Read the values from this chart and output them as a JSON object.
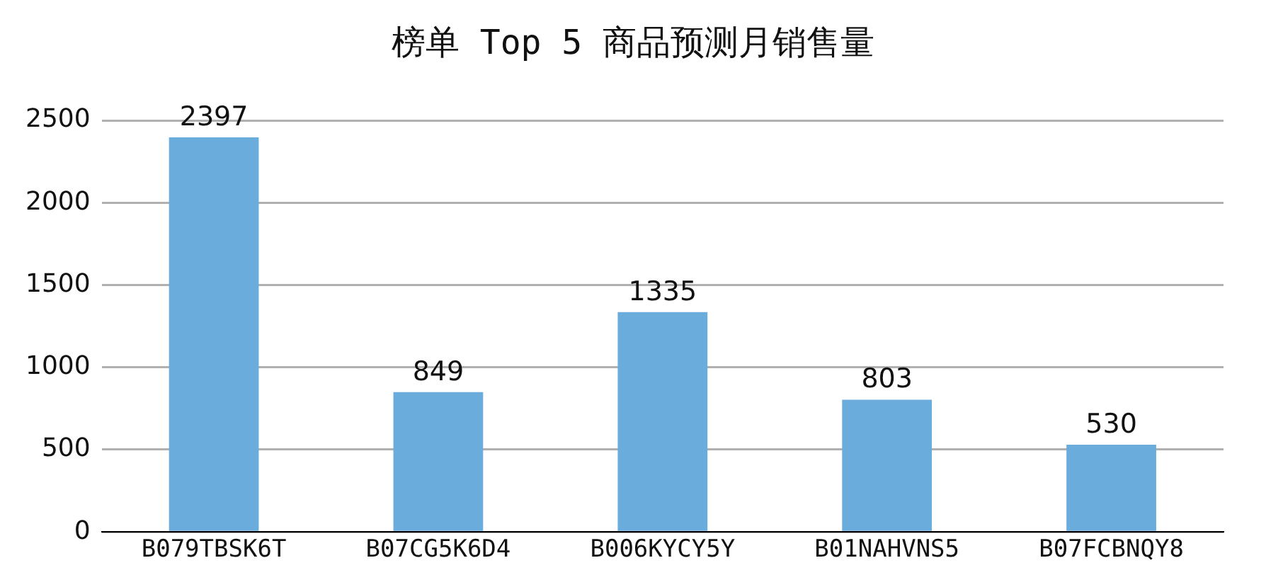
{
  "chart_data": {
    "type": "bar",
    "title": "榜单 Top 5 商品预测月销售量",
    "categories": [
      "B079TBSK6T",
      "B07CG5K6D4",
      "B006KYCY5Y",
      "B01NAHVNS5",
      "B07FCBNQY8"
    ],
    "values": [
      2397,
      849,
      1335,
      803,
      530
    ],
    "color": "#6aacdc",
    "ylim": [
      0,
      2500
    ],
    "yticks": [
      0,
      500,
      1000,
      1500,
      2000,
      2500
    ],
    "grid": "y",
    "data_labels": true
  }
}
